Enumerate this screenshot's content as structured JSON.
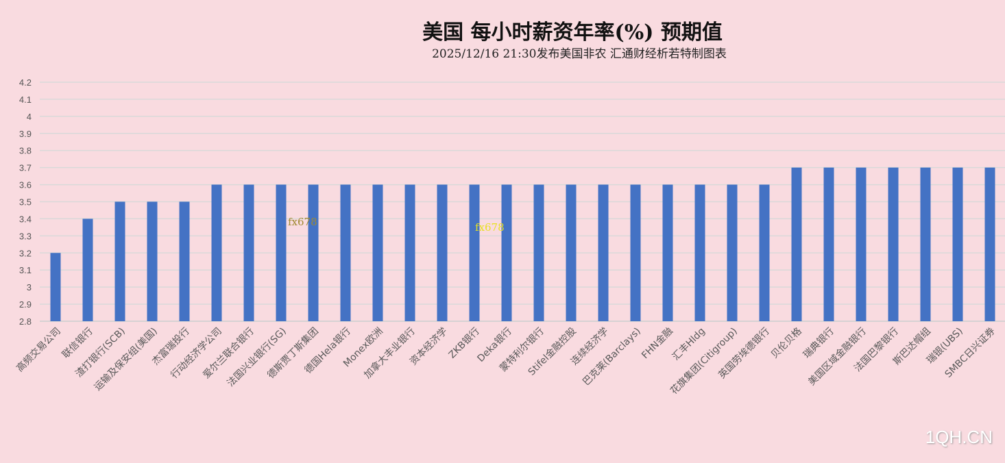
{
  "chart_data": {
    "type": "bar",
    "title": "美国  每小时薪资年率(%)  预期值",
    "subtitle": "2025/12/16  21:30发布美国非农  汇通财经析若特制图表",
    "categories": [
      "高频交易公司",
      "联信银行",
      "渣打银行(SCB)",
      "运输及保安组(美国)",
      "杰富瑞投行",
      "行动经济学公司",
      "爱尔兰联合银行",
      "法国兴业银行(SG)",
      "德斯贾丁斯集团",
      "德国Hela银行",
      "Monex欧洲",
      "加拿大丰业银行",
      "资本经济学",
      "ZKB银行",
      "Deka银行",
      "蒙特利尔银行",
      "Stifel金融控股",
      "连续经济学",
      "巴克莱(Barclays)",
      "FHN金融",
      "汇丰Hldg",
      "花旗集团(Citigroup)",
      "英国劳埃德银行",
      "贝伦贝格",
      "瑞典银行",
      "美国区域金融银行",
      "法国巴黎银行",
      "斯巴达帽组",
      "瑞银(UBS)",
      "SMBC日兴证券"
    ],
    "values": [
      3.2,
      3.4,
      3.5,
      3.5,
      3.5,
      3.6,
      3.6,
      3.6,
      3.6,
      3.6,
      3.6,
      3.6,
      3.6,
      3.6,
      3.6,
      3.6,
      3.6,
      3.6,
      3.6,
      3.6,
      3.6,
      3.6,
      3.6,
      3.7,
      3.7,
      3.7,
      3.7,
      3.7,
      3.7,
      3.7
    ],
    "ylim": [
      2.8,
      4.2
    ],
    "yticks": [
      "2.8",
      "2.9",
      "3",
      "3.1",
      "3.2",
      "3.3",
      "3.4",
      "3.5",
      "3.6",
      "3.7",
      "3.8",
      "3.9",
      "4",
      "4.1",
      "4.2"
    ],
    "grid": true,
    "bar_color": "#4472c4"
  },
  "watermarks": {
    "a": "fx678",
    "b": "fx678",
    "site": "1QH.CN"
  }
}
